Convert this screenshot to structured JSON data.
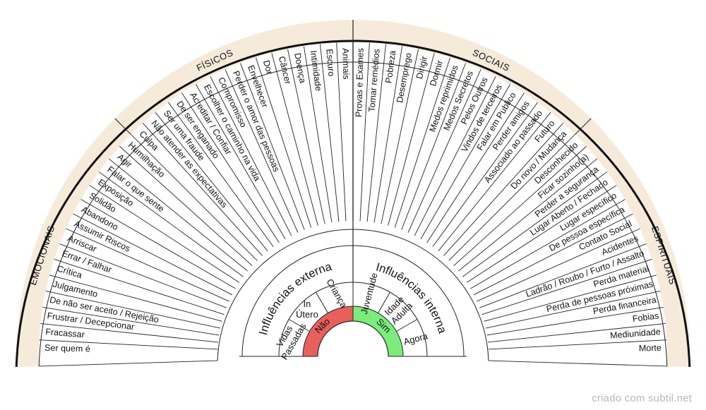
{
  "categories": [
    {
      "label": "EMOCIONAIS",
      "items": [
        "Ser quem é",
        "Fracassar",
        "Frustrar / Decepcionar",
        "De não ser aceito / Rejeição",
        "Julgamento",
        "Crítica",
        "Errar / Falhar",
        "Arriscar",
        "Assumir Riscos",
        "Abandono",
        "Solidão",
        "Exposição",
        "Falar o que sente",
        "Agir",
        "Humilhação",
        "Culpa"
      ]
    },
    {
      "label": "FÍSICOS",
      "items": [
        "Não atender as expectativas",
        "Ser uma fraude",
        "De ser enganado",
        "Acreditar / Confiar",
        "Escolher o caminho na vida",
        "Compromisso",
        "Perder o amor das pessoas",
        "Envelhecer",
        "Dor",
        "Câncer",
        "Doença",
        "Intimidade",
        "Escuro",
        "Animais"
      ]
    },
    {
      "label": "SOCIAIS",
      "items": [
        "Provas e Exames",
        "Tomar remédios",
        "Pobreza",
        "Desemprego",
        "Dirigir",
        "Dormir",
        "Medos reprimidos",
        "Medos Secretos",
        "Pelos Outros",
        "Vindos de terceiros",
        "Falar em Publico",
        "Perder amigos",
        "Associado ao passado",
        "Futuro"
      ]
    },
    {
      "label": "ESPIRITUAIS",
      "items": [
        "Do novo / Mudança",
        "Desconhecido",
        "Ficar sozinho(a)",
        "Perder a segurança",
        "Lugar Aberto / Fechado",
        "Lugar específico",
        "De pessoa específica",
        "Contato Social",
        "Acidentes",
        "Ladrão / Roubo / Furto / Assalto",
        "Perda material",
        "Perda de pessoas próximas",
        "Perda financeira",
        "Fobias",
        "Mediunidade",
        "Morte"
      ]
    }
  ],
  "inner": {
    "left_title": "Influências externa",
    "right_title": "Influências interna",
    "left_items": [
      "Vidas Passadas",
      "In Útero",
      "Criança"
    ],
    "right_items": [
      "Juventude",
      "Idade Adulta",
      "Agora"
    ],
    "no_label": "Não",
    "yes_label": "Sim",
    "no_color": "#e8605c",
    "yes_color": "#7cec7c"
  },
  "colors": {
    "band": "#f6ebdb",
    "stroke": "#222222",
    "outer_rim": "#111111"
  },
  "credit": "criado com subtil.net"
}
